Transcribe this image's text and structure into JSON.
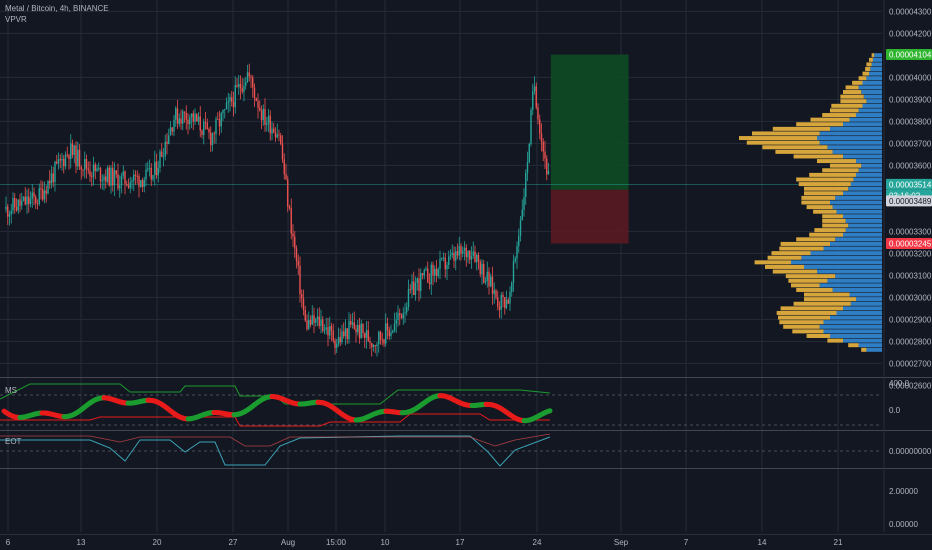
{
  "header": {
    "symbol_title": "Metal / Bitcoin, 4h, BINANCE",
    "indicator_vpvr": "VPVR"
  },
  "panes": {
    "ms_label": "MS",
    "eot_label": "EOT"
  },
  "colors": {
    "background": "#131722",
    "grid": "#262b3a",
    "candle_up": "#26a69a",
    "candle_down": "#ef5350",
    "target_zone": "#0e4d22",
    "stop_zone": "#5b1a22",
    "vpvr_up": "#2f7ec4",
    "vpvr_down": "#d6a53c",
    "ms_green": "#1b9c2f",
    "ms_red": "#e81b1b",
    "eot_line": "#3aa3b5",
    "badge_green": "#2fb52f",
    "badge_teal": "#26a69a",
    "badge_grey": "#d1d4dc",
    "badge_red": "#f23645"
  },
  "chart_data": [
    {
      "type": "candlestick",
      "title": "Metal / Bitcoin, 4h, BINANCE",
      "x_tick_labels": [
        "6",
        "13",
        "20",
        "27",
        "Aug",
        "15:00",
        "10",
        "17",
        "24",
        "Sep",
        "7",
        "14",
        "21"
      ],
      "y_tick_labels": [
        "0.00004300",
        "0.00004200",
        "0.00004000",
        "0.00003900",
        "0.00003800",
        "0.00003700",
        "0.00003600",
        "0.00003300",
        "0.00003200",
        "0.00003100",
        "0.00003000",
        "0.00002900",
        "0.00002800",
        "0.00002700",
        "0.00002600"
      ],
      "y_tick_values": [
        4.3e-05,
        4.2e-05,
        4e-05,
        3.9e-05,
        3.8e-05,
        3.7e-05,
        3.6e-05,
        3.3e-05,
        3.2e-05,
        3.1e-05,
        3e-05,
        2.9e-05,
        2.8e-05,
        2.7e-05,
        2.6e-05
      ],
      "ylim": [
        2.59e-05,
        4.31e-05
      ],
      "price_badges": [
        {
          "label": "0.00004104",
          "value": 4.104e-05,
          "color": "#2fb52f"
        },
        {
          "label": "0.00003514",
          "value": 3.514e-05,
          "color": "#26a69a"
        },
        {
          "label": "03:16:02",
          "value": 3.514e-05,
          "color": "#26a69a"
        },
        {
          "label": "0.00003489",
          "value": 3.489e-05,
          "color": "#d1d4dc"
        },
        {
          "label": "0.00003245",
          "value": 3.245e-05,
          "color": "#f23645"
        }
      ],
      "close_path": [
        [
          0,
          3.4e-05
        ],
        [
          3,
          3.45e-05
        ],
        [
          6,
          3.67e-05
        ],
        [
          8,
          3.58e-05
        ],
        [
          11,
          3.53e-05
        ],
        [
          14,
          3.55e-05
        ],
        [
          16,
          3.82e-05
        ],
        [
          17.5,
          3.83e-05
        ],
        [
          19.5,
          3.73e-05
        ],
        [
          21,
          3.85e-05
        ],
        [
          23,
          4.02e-05
        ],
        [
          24.5,
          3.82e-05
        ],
        [
          26,
          3.75e-05
        ],
        [
          27,
          3.38e-05
        ],
        [
          28.5,
          2.88e-05
        ],
        [
          30,
          2.89e-05
        ],
        [
          31.5,
          2.8e-05
        ],
        [
          33,
          2.87e-05
        ],
        [
          35,
          2.8e-05
        ],
        [
          37,
          2.87e-05
        ],
        [
          39,
          3.06e-05
        ],
        [
          41.5,
          3.14e-05
        ],
        [
          43,
          3.19e-05
        ],
        [
          44.5,
          3.22e-05
        ],
        [
          45.5,
          3.11e-05
        ],
        [
          47,
          2.98e-05
        ],
        [
          48,
          3e-05
        ],
        [
          49.5,
          3.54e-05
        ],
        [
          50.3,
          3.98e-05
        ],
        [
          51,
          3.72e-05
        ],
        [
          51.8,
          3.51e-05
        ]
      ],
      "x_start_day": 0,
      "x_end_day": 51.8,
      "trade_setup": {
        "x_from_day": 51.8,
        "x_to_day": 59.2,
        "take_profit": 4.104e-05,
        "entry": 3.489e-05,
        "stop_loss": 3.245e-05
      },
      "volume_profile": {
        "price_from": 2.75e-05,
        "price_to": 4.11e-05,
        "up": [
          12,
          18,
          30,
          40,
          45,
          48,
          45,
          40,
          35,
          30,
          24,
          20,
          25,
          38,
          48,
          42,
          36,
          50,
          60,
          70,
          62,
          55,
          45,
          40,
          36,
          30,
          28,
          26,
          28,
          30,
          35,
          38,
          40,
          36,
          30,
          26,
          24,
          22,
          20,
          18,
          16,
          20,
          30,
          38,
          42,
          48,
          50,
          48,
          40,
          30,
          25,
          20,
          18,
          15,
          12,
          14,
          16,
          18,
          15,
          12,
          10,
          9,
          8,
          7,
          6
        ],
        "down": [
          4,
          8,
          12,
          18,
          24,
          28,
          34,
          40,
          46,
          48,
          44,
          40,
          35,
          28,
          22,
          30,
          38,
          34,
          30,
          28,
          26,
          30,
          34,
          38,
          30,
          26,
          24,
          20,
          18,
          16,
          18,
          20,
          22,
          26,
          30,
          34,
          40,
          44,
          36,
          28,
          24,
          30,
          38,
          44,
          50,
          56,
          60,
          52,
          44,
          36,
          30,
          26,
          22,
          24,
          20,
          18,
          14,
          10,
          8,
          6,
          5,
          4,
          4,
          3,
          2
        ]
      }
    },
    {
      "type": "line",
      "title": "MS",
      "y_tick_labels": [
        "400.0",
        "0.0"
      ],
      "y_tick_values": [
        400,
        0
      ]
    },
    {
      "type": "line",
      "title": "EOT",
      "y_tick_labels": [
        "0.00000000",
        "2.00000",
        "0.00000"
      ]
    }
  ]
}
